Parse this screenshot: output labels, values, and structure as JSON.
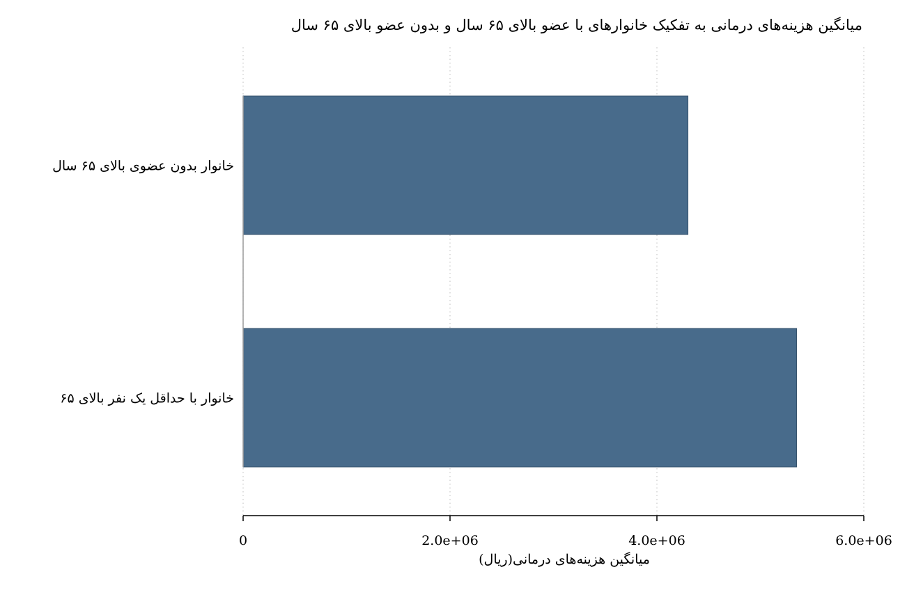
{
  "chart_data": {
    "type": "bar",
    "orientation": "horizontal",
    "title": "میانگین هزینه‌های درمانی به تفکیک خانوارهای با عضو بالای ۶۵ سال و بدون عضو بالای ۶۵ سال",
    "xlabel": "میانگین هزینه‌های درمانی(ریال)",
    "ylabel": "",
    "categories": [
      "خانوار بدون عضوی بالای ۶۵ سال",
      "خانوار با حداقل یک نفر بالای ۶۵"
    ],
    "values": [
      4300000,
      5350000
    ],
    "xlim": [
      0,
      6000000
    ],
    "xticks": [
      0,
      2000000,
      4000000,
      6000000
    ],
    "xtick_labels": [
      "0",
      "2.0e+06",
      "4.0e+06",
      "6.0e+06"
    ],
    "grid": "vertical-dotted",
    "bar_color": "#486b8b",
    "legend": "none"
  }
}
